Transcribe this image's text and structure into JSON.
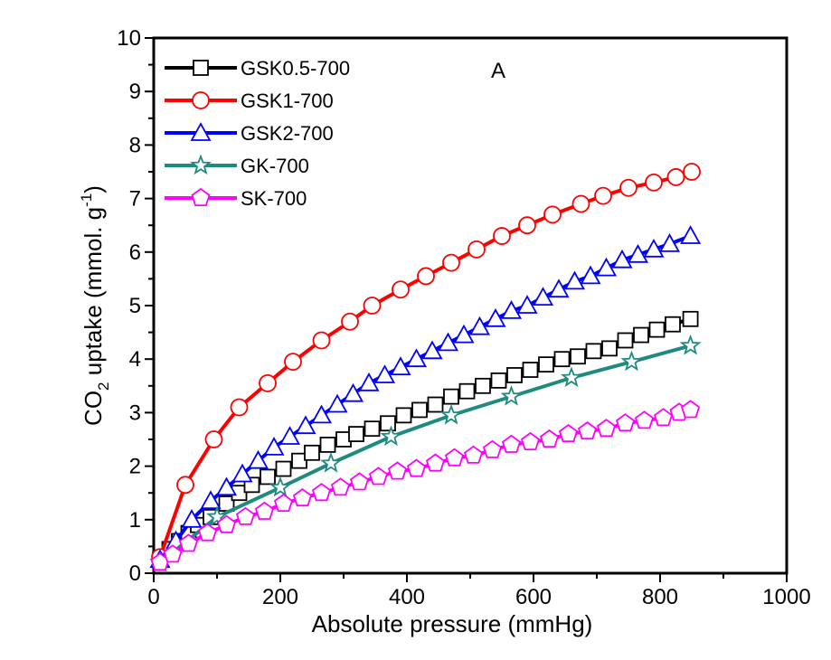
{
  "chart_data": {
    "type": "line",
    "panel_label": "A",
    "xlabel": "Absolute pressure (mmHg)",
    "ylabel_parts": [
      "CO",
      "2",
      " uptake (mmol. g",
      "-1",
      ")"
    ],
    "xlim": [
      0,
      1000
    ],
    "ylim": [
      0,
      10
    ],
    "x_ticks": [
      "0",
      "200",
      "400",
      "600",
      "800",
      "1000"
    ],
    "y_ticks": [
      "0",
      "1",
      "2",
      "3",
      "4",
      "5",
      "6",
      "7",
      "8",
      "9",
      "10"
    ],
    "legend_position": "top-left",
    "series": [
      {
        "name": "GSK0.5-700",
        "color": "#000000",
        "marker": "square",
        "x": [
          10,
          25,
          40,
          55,
          70,
          90,
          115,
          135,
          155,
          180,
          205,
          230,
          250,
          275,
          300,
          320,
          345,
          370,
          395,
          420,
          445,
          470,
          495,
          520,
          545,
          570,
          595,
          620,
          645,
          670,
          695,
          720,
          745,
          770,
          795,
          820,
          848
        ],
        "y": [
          0.25,
          0.45,
          0.6,
          0.75,
          0.9,
          1.05,
          1.3,
          1.5,
          1.65,
          1.8,
          1.95,
          2.1,
          2.25,
          2.4,
          2.5,
          2.6,
          2.7,
          2.8,
          2.95,
          3.05,
          3.15,
          3.3,
          3.4,
          3.5,
          3.6,
          3.7,
          3.8,
          3.9,
          4.0,
          4.05,
          4.15,
          4.2,
          4.35,
          4.45,
          4.55,
          4.65,
          4.75
        ]
      },
      {
        "name": "GSK1-700",
        "color": "#ff0000",
        "marker": "circle",
        "x": [
          10,
          50,
          95,
          135,
          180,
          220,
          265,
          310,
          345,
          390,
          430,
          470,
          510,
          550,
          590,
          630,
          675,
          710,
          750,
          790,
          825,
          850
        ],
        "y": [
          0.3,
          1.65,
          2.5,
          3.1,
          3.55,
          3.95,
          4.35,
          4.7,
          5.0,
          5.3,
          5.55,
          5.8,
          6.05,
          6.3,
          6.5,
          6.7,
          6.9,
          7.05,
          7.2,
          7.3,
          7.4,
          7.5
        ]
      },
      {
        "name": "GSK2-700",
        "color": "#0000ff",
        "marker": "triangle",
        "x": [
          10,
          35,
          60,
          90,
          115,
          140,
          165,
          190,
          215,
          240,
          265,
          290,
          315,
          340,
          365,
          390,
          415,
          440,
          465,
          490,
          515,
          540,
          565,
          590,
          615,
          640,
          665,
          690,
          715,
          740,
          765,
          790,
          815,
          848
        ],
        "y": [
          0.25,
          0.6,
          1.0,
          1.35,
          1.6,
          1.85,
          2.1,
          2.35,
          2.55,
          2.75,
          2.95,
          3.15,
          3.35,
          3.55,
          3.7,
          3.85,
          4.0,
          4.15,
          4.3,
          4.45,
          4.6,
          4.75,
          4.9,
          5.0,
          5.15,
          5.3,
          5.45,
          5.55,
          5.7,
          5.85,
          5.95,
          6.05,
          6.15,
          6.3
        ]
      },
      {
        "name": "GK-700",
        "color": "#1f8a80",
        "marker": "star",
        "x": [
          10,
          100,
          200,
          280,
          375,
          470,
          565,
          660,
          755,
          848
        ],
        "y": [
          0.2,
          1.05,
          1.6,
          2.05,
          2.55,
          2.95,
          3.3,
          3.65,
          3.95,
          4.25
        ]
      },
      {
        "name": "SK-700",
        "color": "#ff00ff",
        "marker": "pentagon",
        "x": [
          10,
          30,
          55,
          85,
          115,
          145,
          175,
          205,
          235,
          265,
          295,
          325,
          355,
          385,
          415,
          445,
          475,
          505,
          535,
          565,
          595,
          625,
          655,
          685,
          715,
          745,
          775,
          805,
          830,
          848
        ],
        "y": [
          0.2,
          0.35,
          0.55,
          0.75,
          0.9,
          1.05,
          1.15,
          1.3,
          1.4,
          1.5,
          1.6,
          1.7,
          1.8,
          1.9,
          1.95,
          2.05,
          2.15,
          2.2,
          2.3,
          2.4,
          2.45,
          2.5,
          2.6,
          2.65,
          2.7,
          2.8,
          2.85,
          2.9,
          3.0,
          3.05
        ]
      }
    ]
  }
}
